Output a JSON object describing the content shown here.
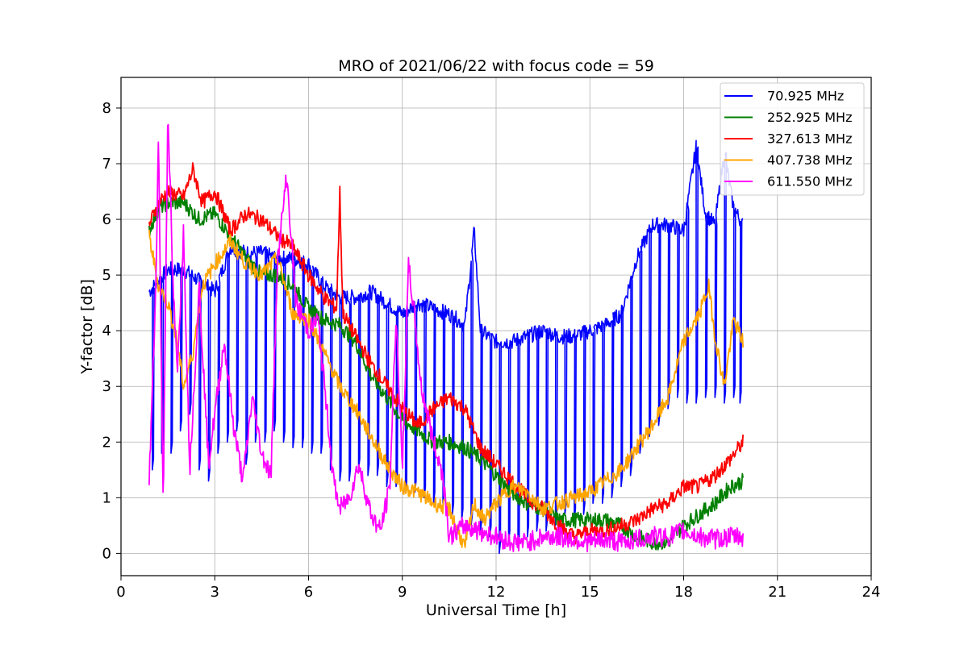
{
  "chart_data": {
    "type": "line",
    "title": "MRO of 2021/06/22 with focus code = 59",
    "xlabel": "Universal Time [h]",
    "ylabel": "Y-factor [dB]",
    "xlim": [
      0,
      24
    ],
    "ylim": [
      -0.4,
      8.55
    ],
    "xticks": [
      0,
      3,
      6,
      9,
      12,
      15,
      18,
      21,
      24
    ],
    "yticks": [
      0,
      1,
      2,
      3,
      4,
      5,
      6,
      7,
      8
    ],
    "grid": true,
    "legend_position": "top-right",
    "series": [
      {
        "name": " 70.925 MHz",
        "color": "#0000ff",
        "points": [
          [
            0.9,
            4.7
          ],
          [
            1.5,
            5.1
          ],
          [
            2,
            5.1
          ],
          [
            2.5,
            4.9
          ],
          [
            3,
            4.7
          ],
          [
            3.5,
            5.5
          ],
          [
            4,
            5.4
          ],
          [
            4.5,
            5.4
          ],
          [
            5,
            5.3
          ],
          [
            5.5,
            5.3
          ],
          [
            6,
            5.2
          ],
          [
            6.5,
            4.8
          ],
          [
            7,
            4.6
          ],
          [
            7.5,
            4.6
          ],
          [
            8,
            4.7
          ],
          [
            8.5,
            4.5
          ],
          [
            9,
            4.3
          ],
          [
            9.5,
            4.5
          ],
          [
            10,
            4.4
          ],
          [
            10.5,
            4.3
          ],
          [
            11,
            4.1
          ],
          [
            11.3,
            5.8
          ],
          [
            11.5,
            4.0
          ],
          [
            12,
            3.8
          ],
          [
            12.5,
            3.8
          ],
          [
            13,
            3.9
          ],
          [
            13.5,
            4.0
          ],
          [
            14,
            3.9
          ],
          [
            14.5,
            3.9
          ],
          [
            15,
            4.0
          ],
          [
            15.5,
            4.1
          ],
          [
            16,
            4.3
          ],
          [
            16.5,
            5.3
          ],
          [
            17,
            5.9
          ],
          [
            17.5,
            5.9
          ],
          [
            18,
            5.8
          ],
          [
            18.4,
            7.3
          ],
          [
            18.7,
            6.1
          ],
          [
            19,
            5.9
          ],
          [
            19.3,
            7.2
          ],
          [
            19.6,
            6.2
          ],
          [
            19.9,
            5.9
          ]
        ],
        "dips": [
          [
            1.0,
            1.5
          ],
          [
            1.3,
            1.8
          ],
          [
            1.6,
            1.8
          ],
          [
            1.9,
            2.2
          ],
          [
            2.2,
            2.5
          ],
          [
            2.5,
            1.5
          ],
          [
            2.8,
            1.3
          ],
          [
            3.1,
            1.8
          ],
          [
            3.4,
            2.0
          ],
          [
            3.7,
            2.2
          ],
          [
            4.0,
            1.6
          ],
          [
            4.3,
            2.0
          ],
          [
            4.6,
            2.0
          ],
          [
            4.9,
            2.2
          ],
          [
            5.2,
            2.0
          ],
          [
            5.5,
            1.9
          ],
          [
            5.8,
            1.9
          ],
          [
            6.1,
            1.8
          ],
          [
            6.4,
            1.8
          ],
          [
            6.7,
            1.5
          ],
          [
            7.0,
            1.3
          ],
          [
            7.3,
            1.3
          ],
          [
            7.6,
            1.5
          ],
          [
            7.9,
            1.4
          ],
          [
            8.2,
            1.4
          ],
          [
            8.5,
            1.2
          ],
          [
            8.8,
            1.2
          ],
          [
            9.1,
            1.1
          ],
          [
            9.4,
            1.1
          ],
          [
            9.7,
            1.0
          ],
          [
            10.0,
            0.9
          ],
          [
            10.3,
            0.9
          ],
          [
            10.6,
            0.7
          ],
          [
            10.9,
            0.6
          ],
          [
            11.2,
            0.5
          ],
          [
            11.5,
            0.4
          ],
          [
            11.8,
            0.3
          ],
          [
            12.1,
            0.0
          ],
          [
            12.4,
            0.2
          ],
          [
            12.7,
            0.1
          ],
          [
            13.0,
            0.3
          ],
          [
            13.3,
            0.4
          ],
          [
            13.6,
            0.4
          ],
          [
            13.9,
            0.5
          ],
          [
            14.2,
            0.7
          ],
          [
            14.5,
            0.6
          ],
          [
            14.8,
            0.7
          ],
          [
            15.1,
            0.9
          ],
          [
            15.4,
            0.9
          ],
          [
            15.7,
            1.0
          ],
          [
            16.0,
            1.2
          ],
          [
            16.3,
            1.4
          ],
          [
            16.6,
            1.8
          ],
          [
            16.9,
            2.1
          ],
          [
            17.2,
            2.3
          ],
          [
            17.5,
            2.6
          ],
          [
            17.8,
            2.8
          ],
          [
            18.1,
            2.7
          ],
          [
            18.4,
            2.7
          ],
          [
            18.7,
            2.8
          ],
          [
            19.0,
            2.8
          ],
          [
            19.3,
            2.7
          ],
          [
            19.6,
            2.8
          ],
          [
            19.8,
            2.7
          ]
        ]
      },
      {
        "name": "252.925 MHz",
        "color": "#008000",
        "points": [
          [
            0.9,
            5.8
          ],
          [
            1.2,
            6.2
          ],
          [
            1.5,
            6.3
          ],
          [
            2,
            6.3
          ],
          [
            2.5,
            6.0
          ],
          [
            3,
            6.1
          ],
          [
            3.5,
            5.7
          ],
          [
            4,
            5.3
          ],
          [
            4.5,
            5.0
          ],
          [
            5,
            5.0
          ],
          [
            5.5,
            4.8
          ],
          [
            6,
            4.4
          ],
          [
            6.5,
            4.2
          ],
          [
            7,
            4.1
          ],
          [
            7.5,
            3.8
          ],
          [
            8,
            3.2
          ],
          [
            8.5,
            2.8
          ],
          [
            9,
            2.4
          ],
          [
            9.5,
            2.2
          ],
          [
            10,
            2.0
          ],
          [
            10.5,
            2.0
          ],
          [
            11,
            1.9
          ],
          [
            11.5,
            1.7
          ],
          [
            12,
            1.4
          ],
          [
            12.5,
            1.1
          ],
          [
            13,
            0.9
          ],
          [
            13.5,
            0.8
          ],
          [
            14,
            0.6
          ],
          [
            14.5,
            0.6
          ],
          [
            15,
            0.6
          ],
          [
            15.5,
            0.6
          ],
          [
            16,
            0.5
          ],
          [
            16.5,
            0.3
          ],
          [
            17,
            0.2
          ],
          [
            17.5,
            0.2
          ],
          [
            18,
            0.5
          ],
          [
            18.5,
            0.7
          ],
          [
            19,
            0.9
          ],
          [
            19.5,
            1.2
          ],
          [
            19.9,
            1.3
          ]
        ],
        "dips": []
      },
      {
        "name": "327.613 MHz",
        "color": "#ff0000",
        "points": [
          [
            0.9,
            5.9
          ],
          [
            1.2,
            6.3
          ],
          [
            1.5,
            6.5
          ],
          [
            2,
            6.4
          ],
          [
            2.3,
            6.9
          ],
          [
            2.6,
            6.3
          ],
          [
            3,
            6.5
          ],
          [
            3.5,
            5.8
          ],
          [
            4,
            6.1
          ],
          [
            4.5,
            6.0
          ],
          [
            5,
            5.7
          ],
          [
            5.5,
            5.5
          ],
          [
            6,
            5.0
          ],
          [
            6.5,
            4.6
          ],
          [
            6.9,
            4.4
          ],
          [
            7,
            6.5
          ],
          [
            7.1,
            4.3
          ],
          [
            7.5,
            3.9
          ],
          [
            8,
            3.4
          ],
          [
            8.5,
            3.0
          ],
          [
            9,
            2.6
          ],
          [
            9.5,
            2.3
          ],
          [
            10,
            2.6
          ],
          [
            10.5,
            2.8
          ],
          [
            11,
            2.6
          ],
          [
            11.5,
            1.9
          ],
          [
            12,
            1.6
          ],
          [
            12.5,
            1.3
          ],
          [
            13,
            1.0
          ],
          [
            13.5,
            0.8
          ],
          [
            14,
            0.5
          ],
          [
            14.5,
            0.3
          ],
          [
            15,
            0.4
          ],
          [
            15.5,
            0.4
          ],
          [
            16,
            0.5
          ],
          [
            16.5,
            0.6
          ],
          [
            17,
            0.8
          ],
          [
            17.5,
            0.9
          ],
          [
            18,
            1.2
          ],
          [
            18.5,
            1.2
          ],
          [
            19,
            1.4
          ],
          [
            19.5,
            1.7
          ],
          [
            19.9,
            2.0
          ]
        ],
        "dips": []
      },
      {
        "name": "407.738 MHz",
        "color": "#ffa500",
        "points": [
          [
            0.9,
            5.7
          ],
          [
            1.2,
            4.8
          ],
          [
            1.5,
            4.5
          ],
          [
            1.8,
            3.8
          ],
          [
            2,
            3.0
          ],
          [
            2.3,
            3.6
          ],
          [
            2.6,
            4.8
          ],
          [
            3,
            5.2
          ],
          [
            3.5,
            5.6
          ],
          [
            4,
            5.2
          ],
          [
            4.5,
            5.0
          ],
          [
            5,
            5.3
          ],
          [
            5.5,
            4.3
          ],
          [
            6,
            4.2
          ],
          [
            6.5,
            3.6
          ],
          [
            7,
            3.0
          ],
          [
            7.5,
            2.6
          ],
          [
            8,
            2.1
          ],
          [
            8.5,
            1.6
          ],
          [
            9,
            1.2
          ],
          [
            9.5,
            1.1
          ],
          [
            10,
            0.9
          ],
          [
            10.5,
            0.8
          ],
          [
            11,
            0.1
          ],
          [
            11.3,
            0.9
          ],
          [
            11.6,
            0.6
          ],
          [
            12,
            0.9
          ],
          [
            12.5,
            1.2
          ],
          [
            13,
            1.1
          ],
          [
            13.5,
            0.8
          ],
          [
            14,
            0.9
          ],
          [
            14.5,
            1.0
          ],
          [
            15,
            1.1
          ],
          [
            15.5,
            1.3
          ],
          [
            16,
            1.5
          ],
          [
            16.5,
            1.9
          ],
          [
            17,
            2.3
          ],
          [
            17.5,
            2.8
          ],
          [
            18,
            3.8
          ],
          [
            18.5,
            4.3
          ],
          [
            18.8,
            4.8
          ],
          [
            19,
            3.9
          ],
          [
            19.3,
            3.0
          ],
          [
            19.6,
            4.2
          ],
          [
            19.9,
            3.8
          ]
        ],
        "dips": []
      },
      {
        "name": "611.550 MHz",
        "color": "#ff00ff",
        "points": [
          [
            0.9,
            1.3
          ],
          [
            1.1,
            4.5
          ],
          [
            1.2,
            7.5
          ],
          [
            1.3,
            3.0
          ],
          [
            1.35,
            0.8
          ],
          [
            1.5,
            8.1
          ],
          [
            1.65,
            5.0
          ],
          [
            1.8,
            3.2
          ],
          [
            2,
            5.8
          ],
          [
            2.2,
            1.5
          ],
          [
            2.5,
            4.8
          ],
          [
            2.8,
            1.6
          ],
          [
            3,
            2.5
          ],
          [
            3.3,
            3.8
          ],
          [
            3.6,
            2.3
          ],
          [
            3.9,
            1.3
          ],
          [
            4.2,
            2.8
          ],
          [
            4.5,
            1.8
          ],
          [
            4.8,
            1.4
          ],
          [
            5,
            5.2
          ],
          [
            5.3,
            6.8
          ],
          [
            5.6,
            4.5
          ],
          [
            6,
            4.0
          ],
          [
            6.3,
            4.2
          ],
          [
            6.6,
            2.5
          ],
          [
            6.8,
            1.3
          ],
          [
            7,
            0.8
          ],
          [
            7.3,
            1.0
          ],
          [
            7.6,
            1.6
          ],
          [
            8,
            0.7
          ],
          [
            8.3,
            0.4
          ],
          [
            8.6,
            1.2
          ],
          [
            8.8,
            4.3
          ],
          [
            9,
            1.5
          ],
          [
            9.2,
            5.2
          ],
          [
            9.4,
            4.2
          ],
          [
            9.6,
            3.0
          ],
          [
            10,
            2.0
          ],
          [
            10.3,
            1.4
          ],
          [
            10.5,
            0.3
          ],
          [
            11,
            0.5
          ],
          [
            11.5,
            0.4
          ],
          [
            12,
            0.3
          ],
          [
            12.5,
            0.2
          ],
          [
            13,
            0.2
          ],
          [
            13.5,
            0.3
          ],
          [
            14,
            0.3
          ],
          [
            14.5,
            0.25
          ],
          [
            15,
            0.2
          ],
          [
            15.5,
            0.25
          ],
          [
            16,
            0.2
          ],
          [
            16.5,
            0.25
          ],
          [
            17,
            0.3
          ],
          [
            17.5,
            0.3
          ],
          [
            18,
            0.4
          ],
          [
            18.5,
            0.3
          ],
          [
            19,
            0.25
          ],
          [
            19.5,
            0.3
          ],
          [
            19.9,
            0.3
          ]
        ],
        "dips": []
      }
    ]
  }
}
